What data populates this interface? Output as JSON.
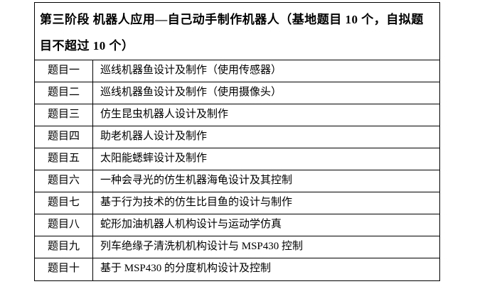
{
  "colors": {
    "border": "#000000",
    "text": "#000000",
    "background": "#ffffff"
  },
  "table": {
    "header": "第三阶段 机器人应用—自己动手制作机器人（基地题目 10 个，自拟题目不超过 10 个）",
    "rows": [
      {
        "label": "题目一",
        "title": "巡线机器鱼设计及制作（使用传感器）"
      },
      {
        "label": "题目二",
        "title": "巡线机器鱼设计及制作（使用摄像头）"
      },
      {
        "label": "题目三",
        "title": "仿生昆虫机器人设计及制作"
      },
      {
        "label": "题目四",
        "title": "助老机器人设计及制作"
      },
      {
        "label": "题目五",
        "title": "太阳能蟋蟀设计及制作"
      },
      {
        "label": "题目六",
        "title": "一种会寻光的仿生机器海龟设计及其控制"
      },
      {
        "label": "题目七",
        "title": "基于行为技术的仿生比目鱼的设计与制作"
      },
      {
        "label": "题目八",
        "title": "蛇形加油机器人机构设计与运动学仿真"
      },
      {
        "label": "题目九",
        "title": "列车绝缘子清洗机机构设计与 MSP430 控制"
      },
      {
        "label": "题目十",
        "title": "基于 MSP430 的分度机构设计及控制"
      }
    ]
  }
}
